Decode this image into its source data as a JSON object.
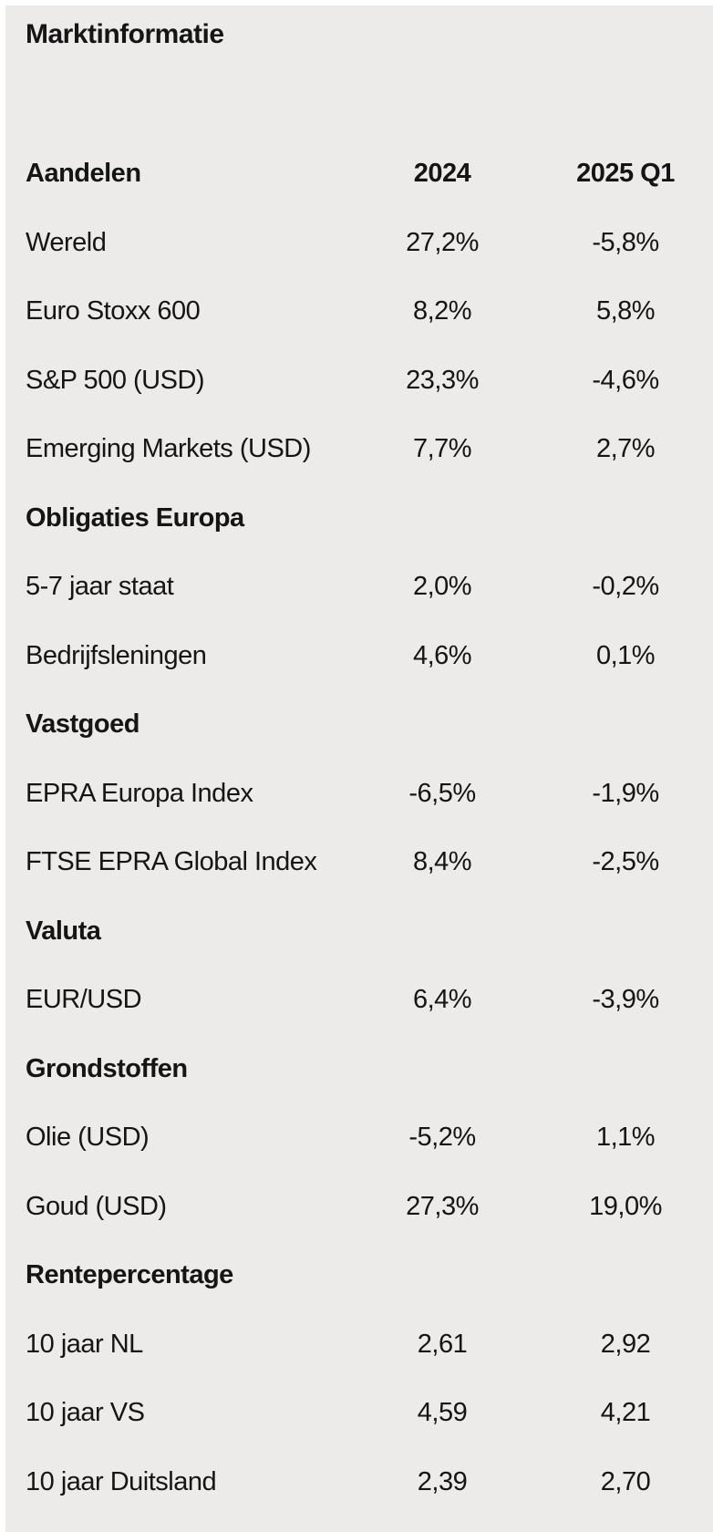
{
  "page": {
    "title": "Marktinformatie",
    "background_color": "#ecebe9",
    "edge_color": "#ffffff",
    "text_color": "#151515"
  },
  "table": {
    "columns": [
      "",
      "2024",
      "2025 Q1"
    ],
    "rows": [
      {
        "type": "header",
        "label": "Aandelen",
        "v2024": "2024",
        "v2025": "2025 Q1"
      },
      {
        "type": "data",
        "label": "Wereld",
        "v2024": "27,2%",
        "v2025": "-5,8%"
      },
      {
        "type": "data",
        "label": "Euro Stoxx 600",
        "v2024": "8,2%",
        "v2025": "5,8%"
      },
      {
        "type": "data",
        "label": "S&P 500 (USD)",
        "v2024": "23,3%",
        "v2025": "-4,6%"
      },
      {
        "type": "data",
        "label": "Emerging Markets (USD)",
        "v2024": "7,7%",
        "v2025": "2,7%"
      },
      {
        "type": "section",
        "label": "Obligaties Europa",
        "v2024": "",
        "v2025": ""
      },
      {
        "type": "data",
        "label": "5-7 jaar staat",
        "v2024": "2,0%",
        "v2025": "-0,2%"
      },
      {
        "type": "data",
        "label": "Bedrijfsleningen",
        "v2024": "4,6%",
        "v2025": "0,1%"
      },
      {
        "type": "section",
        "label": "Vastgoed",
        "v2024": "",
        "v2025": ""
      },
      {
        "type": "data",
        "label": "EPRA Europa Index",
        "v2024": "-6,5%",
        "v2025": "-1,9%"
      },
      {
        "type": "data",
        "label": "FTSE EPRA Global Index",
        "v2024": "8,4%",
        "v2025": "-2,5%"
      },
      {
        "type": "section",
        "label": "Valuta",
        "v2024": "",
        "v2025": ""
      },
      {
        "type": "data",
        "label": "EUR/USD",
        "v2024": "6,4%",
        "v2025": "-3,9%"
      },
      {
        "type": "section",
        "label": "Grondstoffen",
        "v2024": "",
        "v2025": ""
      },
      {
        "type": "data",
        "label": "Olie (USD)",
        "v2024": "-5,2%",
        "v2025": "1,1%"
      },
      {
        "type": "data",
        "label": "Goud (USD)",
        "v2024": "27,3%",
        "v2025": "19,0%"
      },
      {
        "type": "section",
        "label": "Rentepercentage",
        "v2024": "",
        "v2025": ""
      },
      {
        "type": "data",
        "label": "10 jaar NL",
        "v2024": "2,61",
        "v2025": "2,92"
      },
      {
        "type": "data",
        "label": "10 jaar VS",
        "v2024": "4,59",
        "v2025": "4,21"
      },
      {
        "type": "data",
        "label": "10 jaar Duitsland",
        "v2024": "2,39",
        "v2025": "2,70"
      }
    ]
  }
}
